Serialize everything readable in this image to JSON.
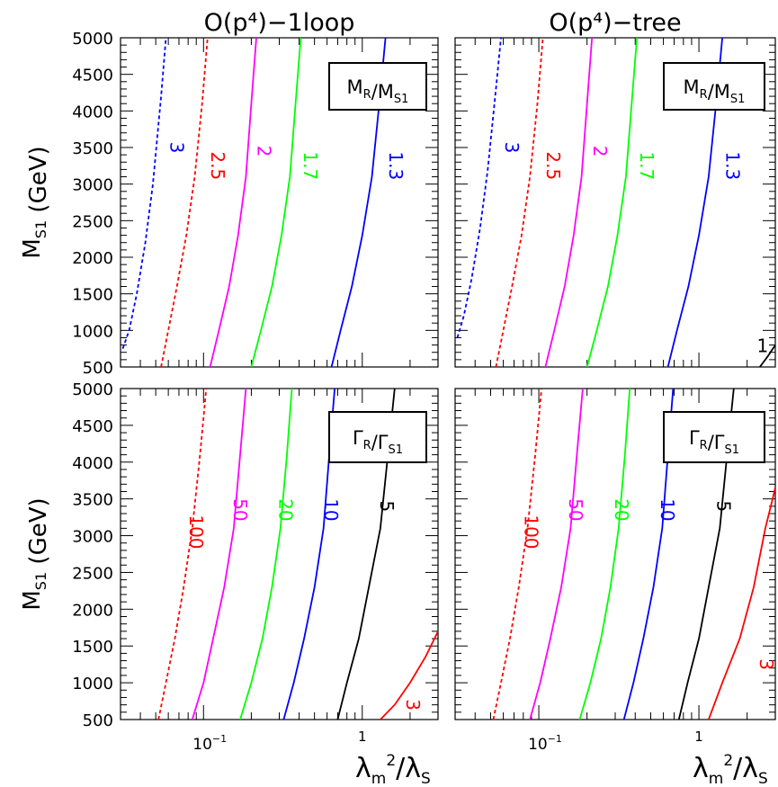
{
  "chart_data": [
    {
      "type": "line",
      "title": "O(p⁴)−1loop",
      "legend_box": "M_R/M_S1",
      "xlabel": "",
      "ylabel": "M_S1 (GeV)",
      "x_scale": "log",
      "xlim": [
        0.03,
        3
      ],
      "ylim": [
        500,
        5000
      ],
      "x_tick_labels": [
        "10⁻¹",
        "1"
      ],
      "y_ticks": [
        500,
        1000,
        1500,
        2000,
        2500,
        3000,
        3500,
        4000,
        4500,
        5000
      ],
      "grid": false,
      "series": [
        {
          "name": "3",
          "color": "#0000ff",
          "dash": true,
          "x": [
            0.031,
            0.034,
            0.038,
            0.043,
            0.048,
            0.054,
            0.058
          ],
          "y": [
            750,
            1000,
            1500,
            2200,
            3000,
            4200,
            5000
          ]
        },
        {
          "name": "2.5",
          "color": "#ff0000",
          "dash": true,
          "x": [
            0.054,
            0.06,
            0.068,
            0.078,
            0.088,
            0.098,
            0.106
          ],
          "y": [
            500,
            1000,
            1600,
            2300,
            3100,
            4100,
            5000
          ]
        },
        {
          "name": "2",
          "color": "#ff00ff",
          "dash": false,
          "x": [
            0.11,
            0.125,
            0.145,
            0.165,
            0.185,
            0.2,
            0.215
          ],
          "y": [
            500,
            1000,
            1600,
            2300,
            3100,
            4100,
            5000
          ]
        },
        {
          "name": "1.7",
          "color": "#00ff00",
          "dash": false,
          "x": [
            0.2,
            0.23,
            0.27,
            0.31,
            0.35,
            0.38,
            0.41
          ],
          "y": [
            500,
            1000,
            1600,
            2300,
            3100,
            4100,
            5000
          ]
        },
        {
          "name": "1.3",
          "color": "#0000ff",
          "dash": false,
          "x": [
            0.64,
            0.73,
            0.86,
            1.0,
            1.15,
            1.28,
            1.4
          ],
          "y": [
            500,
            1000,
            1600,
            2300,
            3100,
            4100,
            5000
          ]
        }
      ]
    },
    {
      "type": "line",
      "title": "O(p⁴)−tree",
      "legend_box": "M_R/M_S1",
      "xlabel": "",
      "ylabel": "",
      "x_scale": "log",
      "xlim": [
        0.03,
        3
      ],
      "ylim": [
        500,
        5000
      ],
      "x_tick_labels": [
        "10⁻¹",
        "1"
      ],
      "y_ticks": [
        500,
        1000,
        1500,
        2000,
        2500,
        3000,
        3500,
        4000,
        4500,
        5000
      ],
      "grid": false,
      "series": [
        {
          "name": "3",
          "color": "#0000ff",
          "dash": true,
          "x": [
            0.031,
            0.034,
            0.038,
            0.043,
            0.048,
            0.054,
            0.058
          ],
          "y": [
            900,
            1200,
            1700,
            2400,
            3200,
            4300,
            5000
          ]
        },
        {
          "name": "2.5",
          "color": "#ff0000",
          "dash": true,
          "x": [
            0.054,
            0.06,
            0.068,
            0.078,
            0.088,
            0.098,
            0.106
          ],
          "y": [
            500,
            1000,
            1600,
            2300,
            3100,
            4100,
            5000
          ]
        },
        {
          "name": "2",
          "color": "#ff00ff",
          "dash": false,
          "x": [
            0.11,
            0.125,
            0.145,
            0.165,
            0.185,
            0.2,
            0.215
          ],
          "y": [
            500,
            1000,
            1600,
            2300,
            3100,
            4100,
            5000
          ]
        },
        {
          "name": "1.7",
          "color": "#00ff00",
          "dash": false,
          "x": [
            0.2,
            0.23,
            0.27,
            0.31,
            0.35,
            0.38,
            0.41
          ],
          "y": [
            500,
            1000,
            1600,
            2300,
            3100,
            4100,
            5000
          ]
        },
        {
          "name": "1.3",
          "color": "#0000ff",
          "dash": false,
          "x": [
            0.64,
            0.73,
            0.86,
            1.0,
            1.15,
            1.28,
            1.4
          ],
          "y": [
            500,
            1000,
            1600,
            2300,
            3100,
            4100,
            5000
          ]
        },
        {
          "name": "1",
          "color": "#000000",
          "dash": false,
          "x": [
            2.4,
            2.7,
            3.0
          ],
          "y": [
            500,
            650,
            800
          ]
        }
      ]
    },
    {
      "type": "line",
      "title": "",
      "legend_box": "Γ_R/Γ_S1",
      "xlabel": "λ_m²/λ_S",
      "ylabel": "M_S1 (GeV)",
      "x_scale": "log",
      "xlim": [
        0.03,
        3
      ],
      "ylim": [
        500,
        5000
      ],
      "x_tick_labels": [
        "10⁻¹",
        "1"
      ],
      "y_ticks": [
        500,
        1000,
        1500,
        2000,
        2500,
        3000,
        3500,
        4000,
        4500,
        5000
      ],
      "grid": false,
      "series": [
        {
          "name": "100",
          "color": "#ff0000",
          "dash": true,
          "x": [
            0.052,
            0.058,
            0.066,
            0.075,
            0.085,
            0.095,
            0.104
          ],
          "y": [
            500,
            1000,
            1600,
            2300,
            3100,
            4100,
            5000
          ]
        },
        {
          "name": "50",
          "color": "#ff00ff",
          "dash": false,
          "x": [
            0.085,
            0.1,
            0.115,
            0.135,
            0.155,
            0.17,
            0.185
          ],
          "y": [
            500,
            1000,
            1600,
            2300,
            3100,
            4100,
            5000
          ]
        },
        {
          "name": "20",
          "color": "#00ff00",
          "dash": false,
          "x": [
            0.17,
            0.2,
            0.235,
            0.27,
            0.305,
            0.335,
            0.36
          ],
          "y": [
            500,
            1000,
            1600,
            2300,
            3100,
            4100,
            5000
          ]
        },
        {
          "name": "10",
          "color": "#0000ff",
          "dash": false,
          "x": [
            0.32,
            0.37,
            0.43,
            0.5,
            0.57,
            0.62,
            0.67
          ],
          "y": [
            500,
            1000,
            1600,
            2300,
            3100,
            4100,
            5000
          ]
        },
        {
          "name": "5",
          "color": "#000000",
          "dash": false,
          "x": [
            0.7,
            0.8,
            0.95,
            1.1,
            1.3,
            1.45,
            1.6
          ],
          "y": [
            500,
            1000,
            1600,
            2300,
            3100,
            4100,
            5000
          ]
        },
        {
          "name": "3",
          "color": "#ff0000",
          "dash": false,
          "x": [
            1.3,
            1.6,
            2.0,
            2.5,
            3.0
          ],
          "y": [
            500,
            700,
            1000,
            1350,
            1700
          ]
        }
      ]
    },
    {
      "type": "line",
      "title": "",
      "legend_box": "Γ_R/Γ_S1",
      "xlabel": "λ_m²/λ_S",
      "ylabel": "",
      "x_scale": "log",
      "xlim": [
        0.03,
        3
      ],
      "ylim": [
        500,
        5000
      ],
      "x_tick_labels": [
        "10⁻¹",
        "1"
      ],
      "y_ticks": [
        500,
        1000,
        1500,
        2000,
        2500,
        3000,
        3500,
        4000,
        4500,
        5000
      ],
      "grid": false,
      "series": [
        {
          "name": "100",
          "color": "#ff0000",
          "dash": true,
          "x": [
            0.052,
            0.058,
            0.066,
            0.075,
            0.085,
            0.095,
            0.104
          ],
          "y": [
            500,
            1000,
            1600,
            2300,
            3100,
            4100,
            5000
          ]
        },
        {
          "name": "50",
          "color": "#ff00ff",
          "dash": false,
          "x": [
            0.088,
            0.102,
            0.118,
            0.138,
            0.158,
            0.173,
            0.188
          ],
          "y": [
            500,
            1000,
            1600,
            2300,
            3100,
            4100,
            5000
          ]
        },
        {
          "name": "20",
          "color": "#00ff00",
          "dash": false,
          "x": [
            0.18,
            0.21,
            0.245,
            0.28,
            0.315,
            0.345,
            0.37
          ],
          "y": [
            500,
            1000,
            1600,
            2300,
            3100,
            4100,
            5000
          ]
        },
        {
          "name": "10",
          "color": "#0000ff",
          "dash": false,
          "x": [
            0.34,
            0.39,
            0.45,
            0.52,
            0.59,
            0.64,
            0.69
          ],
          "y": [
            500,
            1000,
            1600,
            2300,
            3100,
            4100,
            5000
          ]
        },
        {
          "name": "5",
          "color": "#000000",
          "dash": false,
          "x": [
            0.75,
            0.85,
            1.0,
            1.15,
            1.35,
            1.5,
            1.65
          ],
          "y": [
            500,
            1000,
            1600,
            2300,
            3100,
            4100,
            5000
          ]
        },
        {
          "name": "3",
          "color": "#ff0000",
          "dash": false,
          "x": [
            1.15,
            1.4,
            1.8,
            2.2,
            2.6,
            2.85,
            3.0
          ],
          "y": [
            500,
            1000,
            1600,
            2300,
            3100,
            3450,
            3650
          ]
        }
      ]
    }
  ]
}
